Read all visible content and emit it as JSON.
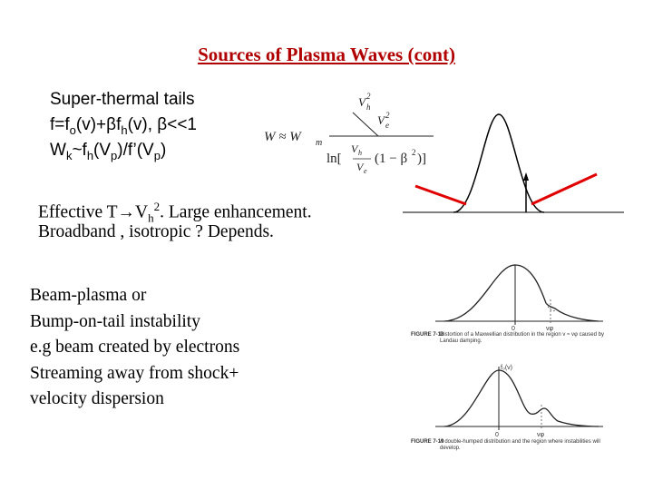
{
  "slide": {
    "title": "Sources of Plasma Waves (cont)",
    "block1": {
      "line1": "Super-thermal tails",
      "line2": {
        "t1": "f=f",
        "s1": "o",
        "t2": "(v)+βf",
        "s2": "h",
        "t3": "(v), β<<1"
      },
      "line3": {
        "t1": "W",
        "s1": "k",
        "t2": "~f",
        "s2": "h",
        "t3": "(V",
        "s3": "p",
        "t4": ")/f’(V",
        "s4": "p",
        "t5": ")"
      }
    },
    "block2": {
      "line1": {
        "t1": "Effective T",
        "arrow": "→",
        "t2": "V",
        "s1": "h",
        "sup1": "2",
        "t3": ". Large enhancement."
      },
      "line2": "Broadband , isotropic ? Depends."
    },
    "block3": {
      "lines": [
        "Beam-plasma or",
        "Bump-on-tail instability",
        "e.g beam created by electrons",
        "Streaming away from shock+",
        "velocity dispersion"
      ]
    },
    "equation": {
      "lhs": "W ≈ W",
      "lhs_sub": "m",
      "approx": "≈",
      "num_top": "V",
      "num_top_sub": "h",
      "num_top_sup": "2",
      "num_bot": "V",
      "num_bot_sub": "e",
      "num_bot_sup": "2",
      "ln": "ln[",
      "inner_top": "V",
      "inner_top_sub": "h",
      "inner_bot": "V",
      "inner_bot_sub": "e",
      "tail": "(1 − β",
      "tail_sup": "2",
      "tail_close": ")]"
    },
    "figures": {
      "fig1": {
        "label": "FIGURE 7-18",
        "caption": "Distortion of a Maxwellian distribution in the region v ≈ vφ caused by Landau damping.",
        "zero": "0",
        "vphi": "vφ"
      },
      "fig2": {
        "label": "FIGURE 7-19",
        "caption": "A double-humped distribution and the region where instabilities will develop.",
        "f0v": "f₀(v)",
        "zero": "0",
        "vphi": "vφ"
      }
    }
  }
}
